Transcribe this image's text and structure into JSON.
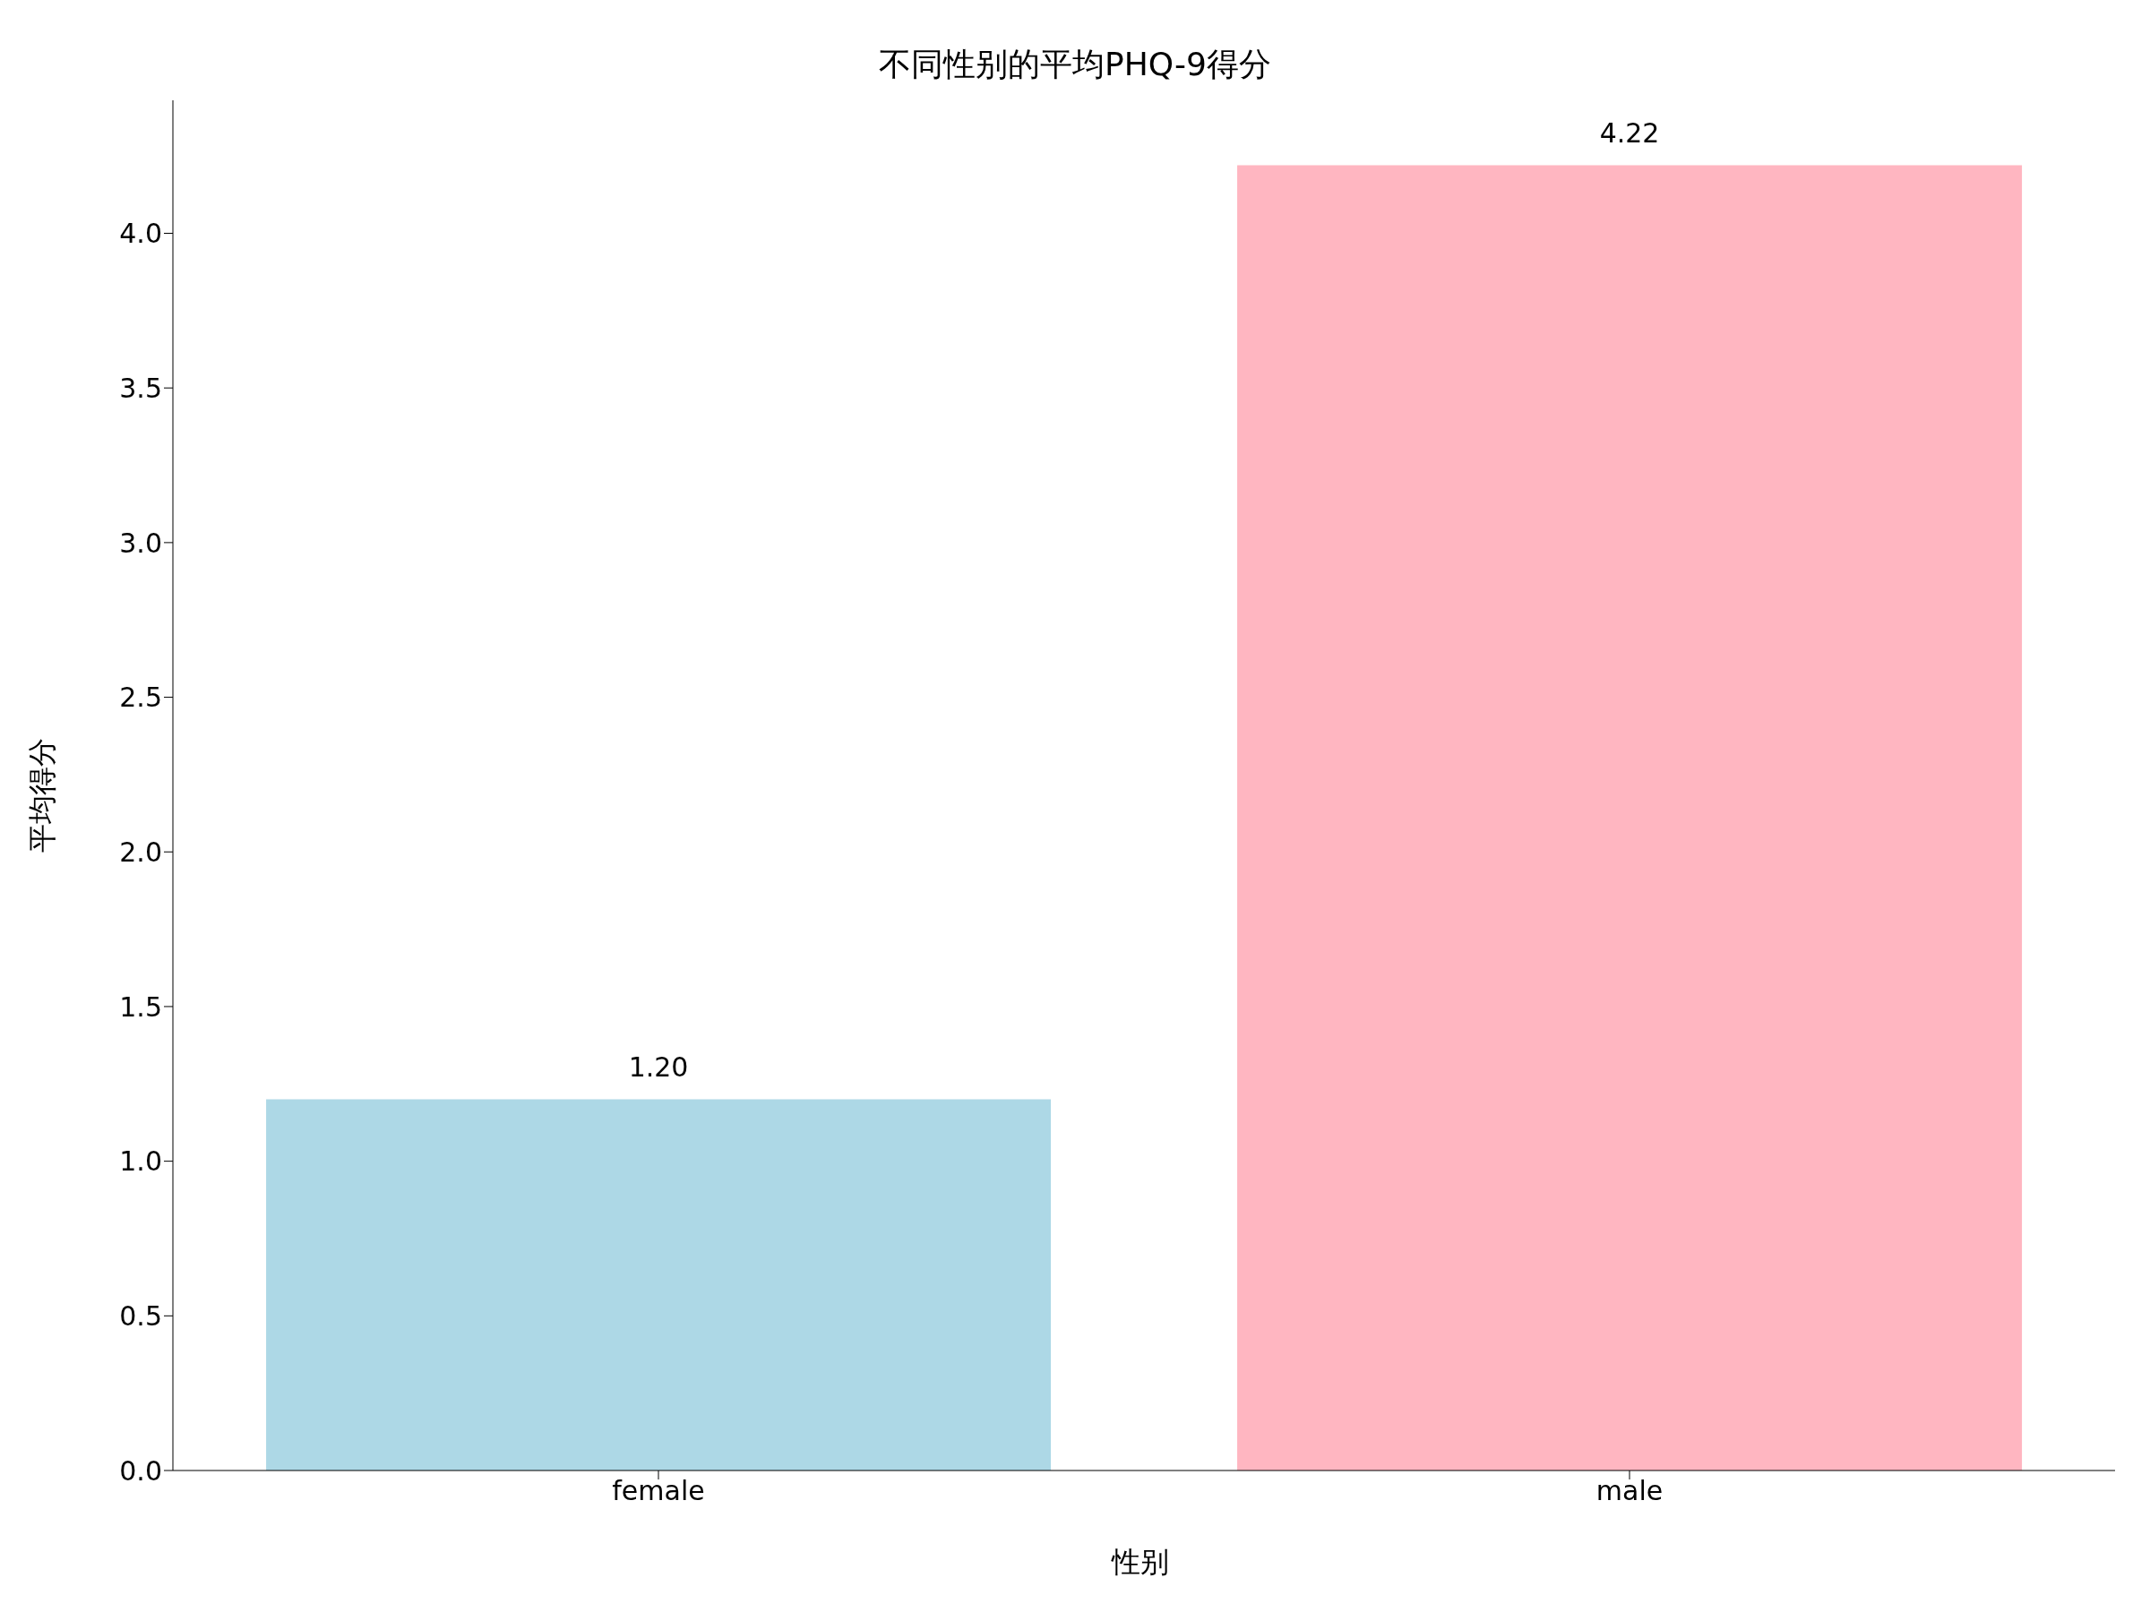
{
  "chart_data": {
    "type": "bar",
    "title": "不同性别的平均PHQ-9得分",
    "xlabel": "性别",
    "ylabel": "平均得分",
    "categories": [
      "female",
      "male"
    ],
    "values": [
      1.2,
      4.22
    ],
    "colors": [
      "#add8e6",
      "#ffb6c1"
    ],
    "value_labels": [
      "1.20",
      "4.22"
    ],
    "ylim": [
      0,
      4.43
    ],
    "yticks": [
      {
        "value": 0,
        "label": "0.0"
      },
      {
        "value": 0.5,
        "label": "0.5"
      },
      {
        "value": 1,
        "label": "1.0"
      },
      {
        "value": 1.5,
        "label": "1.5"
      },
      {
        "value": 2,
        "label": "2.0"
      },
      {
        "value": 2.5,
        "label": "2.5"
      },
      {
        "value": 3,
        "label": "3.0"
      },
      {
        "value": 3.5,
        "label": "3.5"
      },
      {
        "value": 4,
        "label": "4.0"
      }
    ],
    "grid": false
  }
}
